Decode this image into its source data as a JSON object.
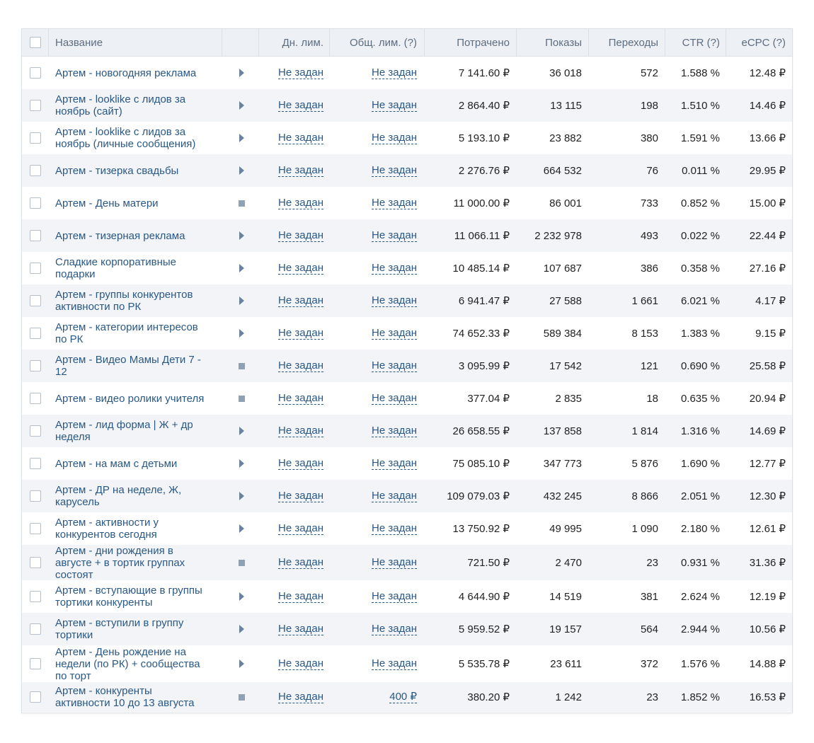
{
  "header": {
    "name": "Название",
    "day_limit": "Дн. лим.",
    "total_limit": "Общ. лим. (?)",
    "spent": "Потрачено",
    "shows": "Показы",
    "clicks": "Переходы",
    "ctr": "CTR (?)",
    "ecpc": "eCPC (?)"
  },
  "rows": [
    {
      "name": [
        "Артем - новогодняя реклама"
      ],
      "status": "play",
      "day": "Не задан",
      "total": "Не задан",
      "spent": "7 141.60 ₽",
      "shows": "36 018",
      "clicks": "572",
      "ctr": "1.588 %",
      "ecpc": "12.48 ₽"
    },
    {
      "name": [
        "Артем - looklike с лидов за",
        "ноябрь (сайт)"
      ],
      "status": "play",
      "day": "Не задан",
      "total": "Не задан",
      "spent": "2 864.40 ₽",
      "shows": "13 115",
      "clicks": "198",
      "ctr": "1.510 %",
      "ecpc": "14.46 ₽"
    },
    {
      "name": [
        "Артем - looklike с лидов за",
        "ноябрь (личные сообщения)"
      ],
      "status": "play",
      "day": "Не задан",
      "total": "Не задан",
      "spent": "5 193.10 ₽",
      "shows": "23 882",
      "clicks": "380",
      "ctr": "1.591 %",
      "ecpc": "13.66 ₽"
    },
    {
      "name": [
        "Артем - тизерка свадьбы"
      ],
      "status": "play",
      "day": "Не задан",
      "total": "Не задан",
      "spent": "2 276.76 ₽",
      "shows": "664 532",
      "clicks": "76",
      "ctr": "0.011 %",
      "ecpc": "29.95 ₽"
    },
    {
      "name": [
        "Артем - День матери"
      ],
      "status": "stop",
      "day": "Не задан",
      "total": "Не задан",
      "spent": "11 000.00 ₽",
      "shows": "86 001",
      "clicks": "733",
      "ctr": "0.852 %",
      "ecpc": "15.00 ₽"
    },
    {
      "name": [
        "Артем - тизерная реклама"
      ],
      "status": "play",
      "day": "Не задан",
      "total": "Не задан",
      "spent": "11 066.11 ₽",
      "shows": "2 232 978",
      "clicks": "493",
      "ctr": "0.022 %",
      "ecpc": "22.44 ₽"
    },
    {
      "name": [
        "Сладкие корпоративные",
        "подарки"
      ],
      "status": "play",
      "day": "Не задан",
      "total": "Не задан",
      "spent": "10 485.14 ₽",
      "shows": "107 687",
      "clicks": "386",
      "ctr": "0.358 %",
      "ecpc": "27.16 ₽"
    },
    {
      "name": [
        "Артем - группы конкурентов",
        "активности по РК"
      ],
      "status": "play",
      "day": "Не задан",
      "total": "Не задан",
      "spent": "6 941.47 ₽",
      "shows": "27 588",
      "clicks": "1 661",
      "ctr": "6.021 %",
      "ecpc": "4.17 ₽"
    },
    {
      "name": [
        "Артем - категории интересов",
        "по РК"
      ],
      "status": "play",
      "day": "Не задан",
      "total": "Не задан",
      "spent": "74 652.33 ₽",
      "shows": "589 384",
      "clicks": "8 153",
      "ctr": "1.383 %",
      "ecpc": "9.15 ₽"
    },
    {
      "name": [
        "Артем - Видео Мамы Дети 7 -",
        "12"
      ],
      "status": "stop",
      "day": "Не задан",
      "total": "Не задан",
      "spent": "3 095.99 ₽",
      "shows": "17 542",
      "clicks": "121",
      "ctr": "0.690 %",
      "ecpc": "25.58 ₽"
    },
    {
      "name": [
        "Артем - видео ролики учителя"
      ],
      "status": "stop",
      "day": "Не задан",
      "total": "Не задан",
      "spent": "377.04 ₽",
      "shows": "2 835",
      "clicks": "18",
      "ctr": "0.635 %",
      "ecpc": "20.94 ₽"
    },
    {
      "name": [
        "Артем - лид форма | Ж + др",
        "неделя"
      ],
      "status": "play",
      "day": "Не задан",
      "total": "Не задан",
      "spent": "26 658.55 ₽",
      "shows": "137 858",
      "clicks": "1 814",
      "ctr": "1.316 %",
      "ecpc": "14.69 ₽"
    },
    {
      "name": [
        "Артем - на мам с детьми"
      ],
      "status": "play",
      "day": "Не задан",
      "total": "Не задан",
      "spent": "75 085.10 ₽",
      "shows": "347 773",
      "clicks": "5 876",
      "ctr": "1.690 %",
      "ecpc": "12.77 ₽"
    },
    {
      "name": [
        "Артем - ДР на неделе, Ж,",
        "карусель"
      ],
      "status": "play",
      "day": "Не задан",
      "total": "Не задан",
      "spent": "109 079.03 ₽",
      "shows": "432 245",
      "clicks": "8 866",
      "ctr": "2.051 %",
      "ecpc": "12.30 ₽"
    },
    {
      "name": [
        "Артем - активности у",
        "конкурентов сегодня"
      ],
      "status": "play",
      "day": "Не задан",
      "total": "Не задан",
      "spent": "13 750.92 ₽",
      "shows": "49 995",
      "clicks": "1 090",
      "ctr": "2.180 %",
      "ecpc": "12.61 ₽"
    },
    {
      "name": [
        "Артем - дни рождения в",
        "августе + в тортик группах",
        "состоят"
      ],
      "status": "stop",
      "day": "Не задан",
      "total": "Не задан",
      "spent": "721.50 ₽",
      "shows": "2 470",
      "clicks": "23",
      "ctr": "0.931 %",
      "ecpc": "31.36 ₽"
    },
    {
      "name": [
        "Артем - вступающие в группы",
        "тортики конкуренты"
      ],
      "status": "play",
      "day": "Не задан",
      "total": "Не задан",
      "spent": "4 644.90 ₽",
      "shows": "14 519",
      "clicks": "381",
      "ctr": "2.624 %",
      "ecpc": "12.19 ₽"
    },
    {
      "name": [
        "Артем - вступили в группу",
        "тортики"
      ],
      "status": "play",
      "day": "Не задан",
      "total": "Не задан",
      "spent": "5 959.52 ₽",
      "shows": "19 157",
      "clicks": "564",
      "ctr": "2.944 %",
      "ecpc": "10.56 ₽"
    },
    {
      "name": [
        "Артем - День рождение на",
        "недели (по РК) + сообщества",
        "по торт"
      ],
      "status": "play",
      "day": "Не задан",
      "total": "Не задан",
      "spent": "5 535.78 ₽",
      "shows": "23 611",
      "clicks": "372",
      "ctr": "1.576 %",
      "ecpc": "14.88 ₽"
    },
    {
      "name": [
        "Артем - конкуренты",
        "активности 10 до 13 августа"
      ],
      "status": "stop",
      "day": "Не задан",
      "total": "400 ₽",
      "spent": "380.20 ₽",
      "shows": "1 242",
      "clicks": "23",
      "ctr": "1.852 %",
      "ecpc": "16.53 ₽"
    }
  ]
}
